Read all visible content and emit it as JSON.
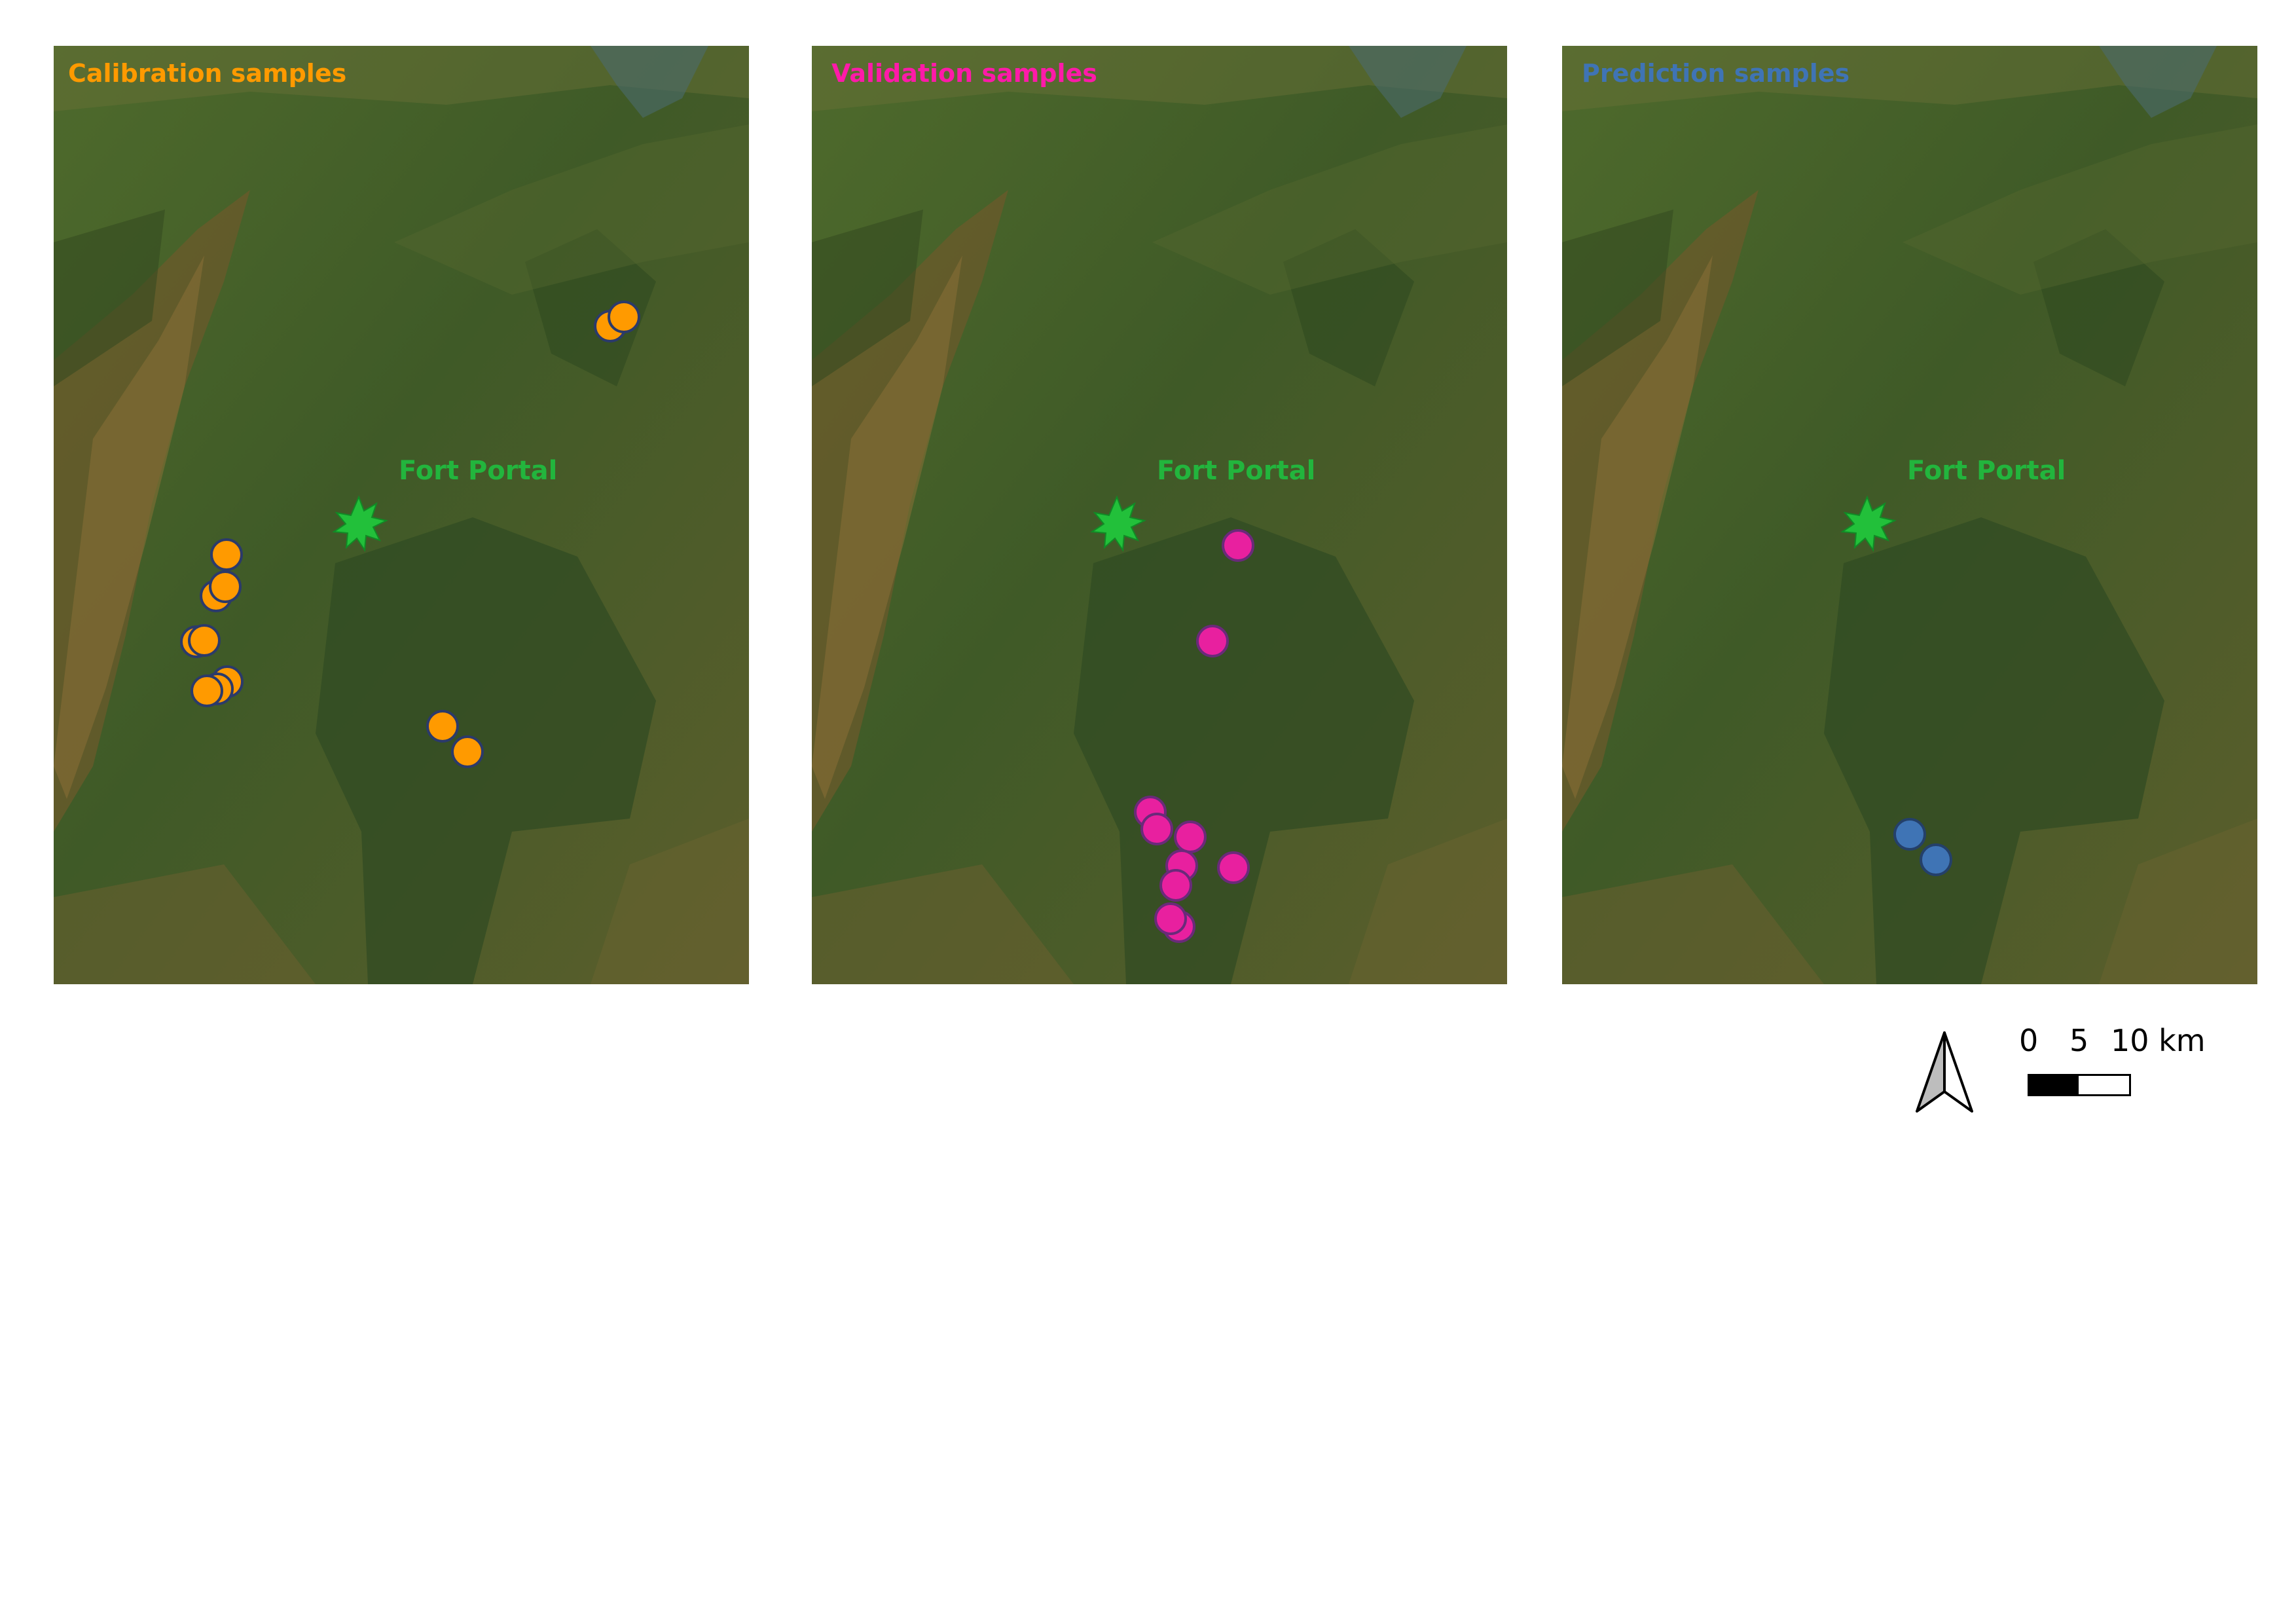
{
  "panels": [
    {
      "title": "Calibration samples",
      "title_color": "#ff9a00",
      "place_label": "Fort Portal",
      "marker_color": "#ff9a00"
    },
    {
      "title": "Validation samples",
      "title_color": "#ff1aa9",
      "place_label": "Fort Portal",
      "marker_color": "#e8209f"
    },
    {
      "title": "Prediction samples",
      "title_color": "#3f74b5",
      "place_label": "Fort Portal",
      "marker_color": "#3f74b5"
    }
  ],
  "place_label_color": "#22b53d",
  "city_marker_color": "#22c03a",
  "scalebar": {
    "ticks": [
      "0",
      "5",
      "10 km"
    ]
  },
  "north_arrow": {
    "icon": "north-arrow-icon"
  },
  "basemap": {
    "type": "satellite imagery"
  }
}
